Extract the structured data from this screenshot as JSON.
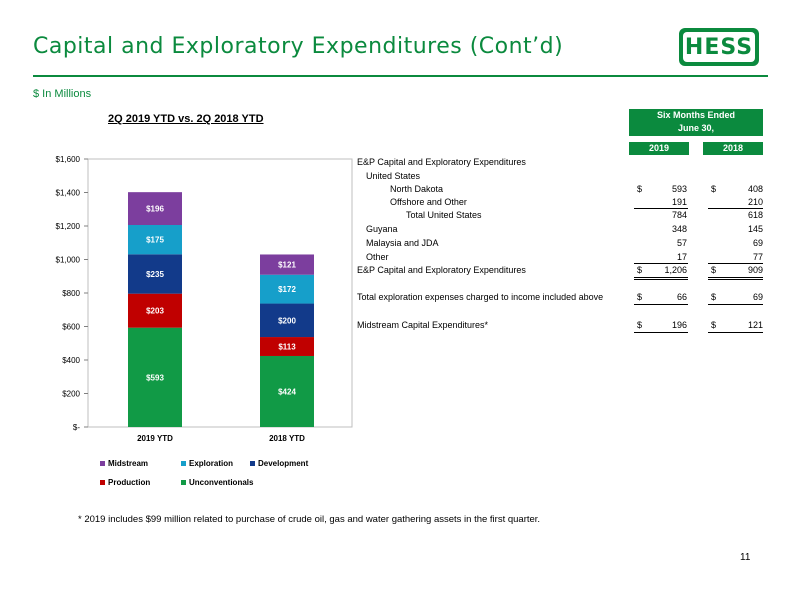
{
  "title": "Capital and Exploratory Expenditures (Cont’d)",
  "logo_text": "HESS",
  "units_label": "$ In Millions",
  "chart_heading": "2Q 2019 YTD vs. 2Q 2018 YTD",
  "chart_data": {
    "type": "bar",
    "stacked": true,
    "categories": [
      "2019 YTD",
      "2018 YTD"
    ],
    "ylim": [
      0,
      1600
    ],
    "yticks": [
      0,
      200,
      400,
      600,
      800,
      1000,
      1200,
      1400,
      1600
    ],
    "ytick_labels": [
      "$-",
      "$200",
      "$400",
      "$600",
      "$800",
      "$1,000",
      "$1,200",
      "$1,400",
      "$1,600"
    ],
    "legend_position": "bottom",
    "series": [
      {
        "name": "Unconventionals",
        "color": "#119a46",
        "values": [
          593,
          424
        ],
        "labels": [
          "$593",
          "$424"
        ]
      },
      {
        "name": "Production",
        "color": "#c00000",
        "values": [
          203,
          113
        ],
        "labels": [
          "$203",
          "$113"
        ]
      },
      {
        "name": "Development",
        "color": "#123a8a",
        "values": [
          235,
          200
        ],
        "labels": [
          "$235",
          "$200"
        ]
      },
      {
        "name": "Exploration",
        "color": "#169fca",
        "values": [
          175,
          172
        ],
        "labels": [
          "$175",
          "$172"
        ]
      },
      {
        "name": "Midstream",
        "color": "#7c3e9e",
        "values": [
          196,
          121
        ],
        "labels": [
          "$196",
          "$121"
        ]
      }
    ],
    "legend_order": [
      "Midstream",
      "Exploration",
      "Development",
      "Production",
      "Unconventionals"
    ]
  },
  "table": {
    "header_line1": "Six Months Ended",
    "header_line2": "June 30,",
    "col_2019": "2019",
    "col_2018": "2018",
    "rows": [
      {
        "label": "E&P Capital and Exploratory Expenditures",
        "v2019": "",
        "v2018": ""
      },
      {
        "label": "United States",
        "v2019": "",
        "v2018": ""
      },
      {
        "label": "North Dakota",
        "cur": "$",
        "v2019": "593",
        "v2018": "408"
      },
      {
        "label": "Offshore and Other",
        "v2019": "191",
        "v2018": "210"
      },
      {
        "label": "Total United States",
        "v2019": "784",
        "v2018": "618"
      },
      {
        "label": "Guyana",
        "v2019": "348",
        "v2018": "145"
      },
      {
        "label": "Malaysia and JDA",
        "v2019": "57",
        "v2018": "69"
      },
      {
        "label": "Other",
        "v2019": "17",
        "v2018": "77"
      },
      {
        "label": "E&P Capital and Exploratory Expenditures",
        "cur": "$",
        "v2019": "1,206",
        "v2018": "909"
      },
      {
        "label": "Total exploration expenses charged to income included above",
        "cur": "$",
        "v2019": "66",
        "v2018": "69"
      },
      {
        "label": "Midstream Capital Expenditures*",
        "cur": "$",
        "v2019": "196",
        "v2018": "121"
      }
    ]
  },
  "footnote": "* 2019 includes $99 million related to purchase of crude oil, gas and water gathering assets in the first quarter.",
  "page_number": "11"
}
